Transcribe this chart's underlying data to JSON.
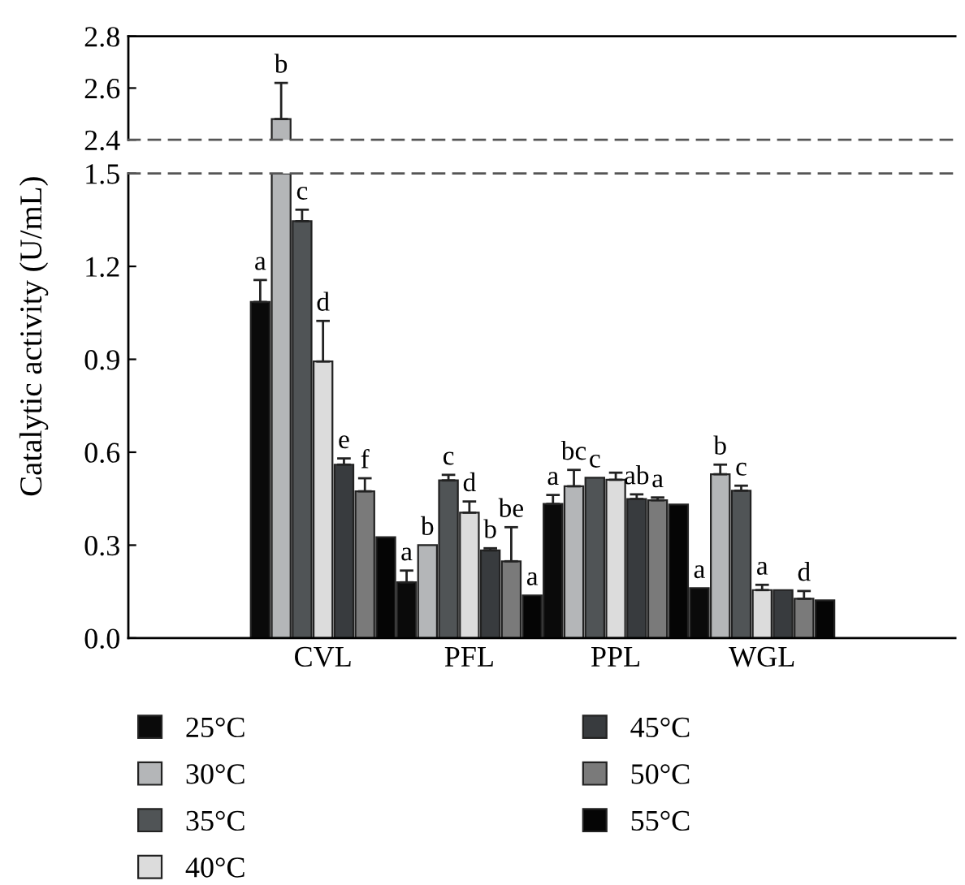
{
  "chart_data": [
    {
      "type": "bar",
      "categories": [
        null,
        null,
        null,
        null
      ],
      "ylim": [
        2.4,
        2.8
      ],
      "yticks": [
        2.4,
        2.6,
        2.8
      ],
      "tick_labels": "y",
      "ylabel": "Catalytic activity (U/mL)",
      "series": [
        {
          "color": "#0a0a0a",
          "values": [
            null,
            null,
            null,
            null
          ]
        },
        {
          "color": "#b4b6b8",
          "values": [
            2.48,
            null,
            null,
            null
          ],
          "errors": [
            [
              2.48,
              2.62
            ],
            null,
            null,
            null
          ],
          "value_labels": [
            "b",
            null,
            null,
            null
          ]
        },
        {
          "color": "#505456",
          "values": [
            null,
            null,
            null,
            null
          ]
        },
        {
          "color": "#dcdcdc",
          "values": [
            null,
            null,
            null,
            null
          ]
        },
        {
          "color": "#383b3e",
          "values": [
            null,
            null,
            null,
            null
          ]
        },
        {
          "color": "#7a7a7a",
          "values": [
            null,
            null,
            null,
            null
          ]
        },
        {
          "color": "#050505",
          "values": [
            null,
            null,
            null,
            null
          ]
        }
      ]
    },
    {
      "type": "bar",
      "categories": [
        "CVL",
        "PFL",
        "PPL",
        "WGL"
      ],
      "ylim": [
        0,
        1.5
      ],
      "yticks": [
        {
          "value": 0,
          "label": "0.0"
        },
        0.3,
        0.6,
        0.9,
        1.2,
        1.5
      ],
      "legend": "bottom",
      "series": [
        {
          "name": "25°C",
          "color": "#0a0a0a",
          "values": [
            1.085,
            0.18,
            0.433,
            0.161
          ],
          "errors": [
            [
              1.085,
              1.156
            ],
            [
              0.18,
              0.218
            ],
            [
              0.433,
              0.462
            ],
            null
          ],
          "value_labels": [
            "a",
            "a",
            "a",
            "a"
          ]
        },
        {
          "name": "30°C",
          "color": "#b4b6b8",
          "values": [
            1.5,
            0.3,
            0.49,
            0.529
          ],
          "errors": [
            null,
            null,
            [
              0.49,
              0.543
            ],
            [
              0.529,
              0.56
            ]
          ],
          "value_labels": [
            null,
            "b",
            "bc",
            "b"
          ]
        },
        {
          "name": "35°C",
          "color": "#505456",
          "values": [
            1.346,
            0.509,
            0.518,
            0.476
          ],
          "errors": [
            [
              1.346,
              1.383
            ],
            [
              0.509,
              0.527
            ],
            null,
            [
              0.476,
              0.492
            ]
          ],
          "value_labels": [
            "c",
            "c",
            "c",
            "c"
          ]
        },
        {
          "name": "40°C",
          "color": "#dcdcdc",
          "values": [
            0.893,
            0.405,
            0.511,
            0.155
          ],
          "errors": [
            [
              0.893,
              1.024
            ],
            [
              0.405,
              0.441
            ],
            [
              0.511,
              0.534
            ],
            [
              0.155,
              0.172
            ]
          ],
          "value_labels": [
            "d",
            "d",
            null,
            "a"
          ]
        },
        {
          "name": "45°C",
          "color": "#383b3e",
          "values": [
            0.56,
            0.283,
            0.449,
            0.155
          ],
          "errors": [
            [
              0.56,
              0.58
            ],
            [
              0.283,
              0.29
            ],
            [
              0.449,
              0.464
            ],
            null
          ],
          "value_labels": [
            "e",
            "b",
            "ab",
            null
          ]
        },
        {
          "name": "50°C",
          "color": "#7a7a7a",
          "values": [
            0.474,
            0.248,
            0.445,
            0.127
          ],
          "errors": [
            [
              0.474,
              0.516
            ],
            [
              0.248,
              0.358
            ],
            [
              0.445,
              0.454
            ],
            [
              0.127,
              0.152
            ]
          ],
          "value_labels": [
            "f",
            "be",
            "a",
            "d"
          ]
        },
        {
          "name": "55°C",
          "color": "#050505",
          "values": [
            0.326,
            0.138,
            0.431,
            0.122
          ],
          "value_labels": [
            null,
            "a",
            null,
            null
          ]
        }
      ]
    }
  ]
}
